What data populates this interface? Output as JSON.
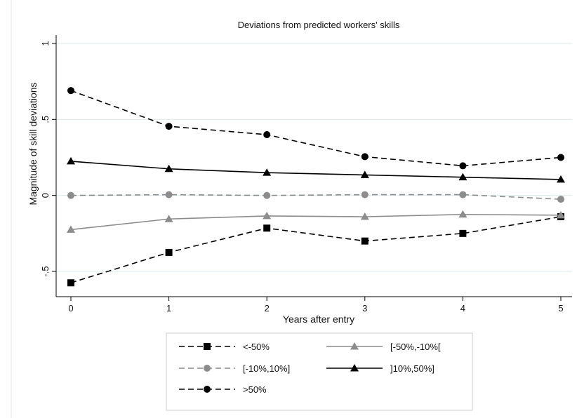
{
  "chart_data": {
    "type": "line",
    "title": "Deviations from predicted workers' skills",
    "xlabel": "Years after entry",
    "ylabel": "Magnitude of skill deviations",
    "x": [
      0,
      1,
      2,
      3,
      4,
      5
    ],
    "xlim": [
      0,
      5
    ],
    "ylim": [
      -0.5,
      1
    ],
    "xticks": [
      "0",
      "1",
      "2",
      "3",
      "4",
      "5"
    ],
    "yticks": [
      {
        "value": -0.5,
        "label": "-.5"
      },
      {
        "value": 0,
        "label": "0"
      },
      {
        "value": 0.5,
        "label": ".5"
      },
      {
        "value": 1,
        "label": "1"
      }
    ],
    "grid": true,
    "legend_position": "bottom",
    "series": [
      {
        "name": "<-50%",
        "values": [
          -0.575,
          -0.375,
          -0.215,
          -0.3,
          -0.25,
          -0.14
        ],
        "color": "#000000",
        "dash": "dashed",
        "marker": "square"
      },
      {
        "name": "[-50%,-10%[",
        "values": [
          -0.225,
          -0.155,
          -0.135,
          -0.14,
          -0.125,
          -0.13
        ],
        "color": "#8c8c8c",
        "dash": "solid",
        "marker": "triangle"
      },
      {
        "name": "[-10%,10%]",
        "values": [
          0.0,
          0.005,
          0.0,
          0.005,
          0.005,
          -0.025
        ],
        "color": "#8c8c8c",
        "dash": "dashed",
        "marker": "circle"
      },
      {
        "name": "]10%,50%]",
        "values": [
          0.225,
          0.175,
          0.15,
          0.135,
          0.12,
          0.105
        ],
        "color": "#000000",
        "dash": "solid",
        "marker": "triangle"
      },
      {
        "name": ">50%",
        "values": [
          0.69,
          0.455,
          0.4,
          0.255,
          0.195,
          0.25
        ],
        "color": "#000000",
        "dash": "dashed",
        "marker": "circle"
      }
    ]
  }
}
